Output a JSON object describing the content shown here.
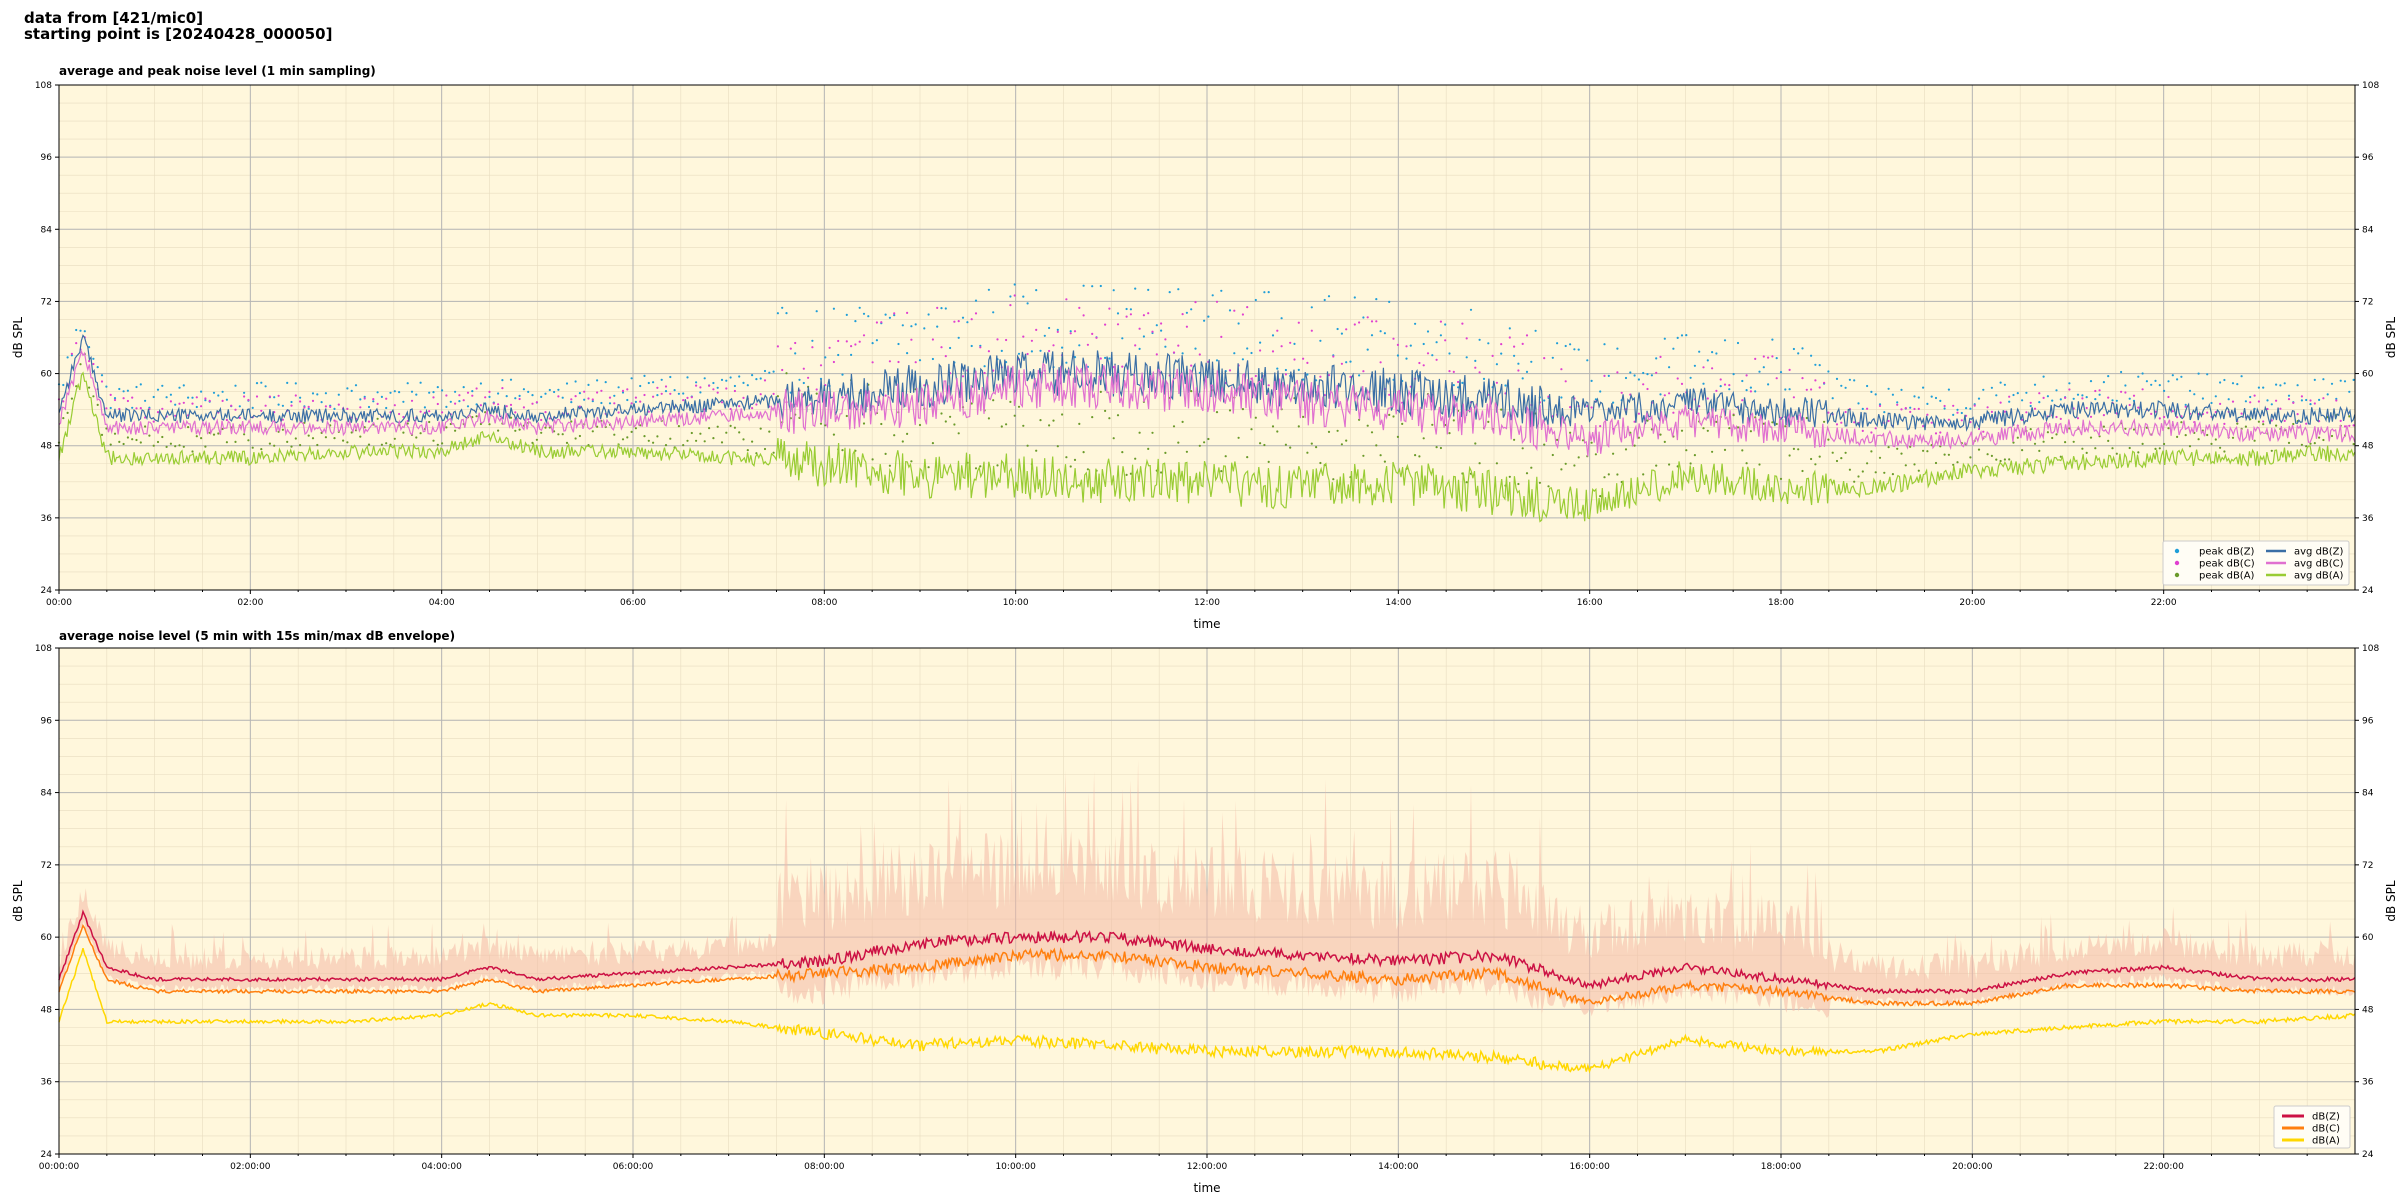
{
  "header": {
    "line1": "data from [421/mic0]",
    "line2": "starting point is [20240428_000050]"
  },
  "colors": {
    "plot_bg": "#fff7dc",
    "grid_major": "#b5b5b5",
    "grid_minor": "#e8dcc0",
    "envelope": "#f4b9a6"
  },
  "chart_data": [
    {
      "type": "line",
      "title": "average and peak noise level (1 min sampling)",
      "xlabel": "time",
      "ylabel": "dB SPL",
      "ylim": [
        24,
        108
      ],
      "xlim_hours": [
        0,
        24
      ],
      "yticks": [
        24,
        36,
        48,
        60,
        72,
        84,
        96,
        108
      ],
      "xtick_labels": [
        "00:00",
        "02:00",
        "04:00",
        "06:00",
        "08:00",
        "10:00",
        "12:00",
        "14:00",
        "16:00",
        "18:00",
        "20:00",
        "22:00"
      ],
      "legend_position": "bottom-right",
      "legend": [
        {
          "name": "peak dB(Z)",
          "kind": "marker",
          "color": "#1f9ed8"
        },
        {
          "name": "peak dB(C)",
          "kind": "marker",
          "color": "#e040d0"
        },
        {
          "name": "peak dB(A)",
          "kind": "marker",
          "color": "#6a9a2a"
        },
        {
          "name": "avg dB(Z)",
          "kind": "line",
          "color": "#3a6ea5"
        },
        {
          "name": "avg dB(C)",
          "kind": "line",
          "color": "#e070d0"
        },
        {
          "name": "avg dB(A)",
          "kind": "line",
          "color": "#99cc33"
        }
      ],
      "x_hours": [
        0,
        0.25,
        0.5,
        1,
        2,
        3,
        4,
        4.5,
        5,
        6,
        7,
        8,
        9,
        10,
        11,
        12,
        13,
        14,
        15,
        16,
        17,
        18,
        19,
        20,
        21,
        22,
        23,
        24
      ],
      "series": [
        {
          "name": "avg dB(Z)",
          "values": [
            54,
            66,
            53,
            53,
            53,
            53,
            53,
            54,
            53,
            54,
            55,
            56,
            58,
            60,
            60,
            59,
            58,
            57,
            56,
            53,
            55,
            54,
            52,
            52,
            54,
            54,
            53,
            53
          ]
        },
        {
          "name": "avg dB(C)",
          "values": [
            52,
            64,
            51,
            51,
            51,
            51,
            51,
            53,
            51,
            52,
            53,
            54,
            55,
            58,
            58,
            57,
            55,
            54,
            53,
            49,
            52,
            51,
            49,
            49,
            51,
            51,
            50,
            50
          ]
        },
        {
          "name": "avg dB(A)",
          "values": [
            46,
            60,
            46,
            46,
            46,
            47,
            47,
            50,
            47,
            47,
            46,
            45,
            43,
            43,
            42,
            42,
            41,
            42,
            40,
            38,
            43,
            41,
            41,
            44,
            45,
            46,
            46,
            47
          ]
        }
      ]
    },
    {
      "type": "line",
      "title": "average noise level (5 min with 15s min/max dB envelope)",
      "xlabel": "time",
      "ylabel": "dB SPL",
      "ylim": [
        24,
        108
      ],
      "xlim_hours": [
        0,
        24
      ],
      "yticks": [
        24,
        36,
        48,
        60,
        72,
        84,
        96,
        108
      ],
      "xtick_labels": [
        "00:00:00",
        "02:00:00",
        "04:00:00",
        "06:00:00",
        "08:00:00",
        "10:00:00",
        "12:00:00",
        "14:00:00",
        "16:00:00",
        "18:00:00",
        "20:00:00",
        "22:00:00"
      ],
      "legend_position": "bottom-right",
      "legend": [
        {
          "name": "dB(Z)",
          "kind": "line",
          "color": "#cc1144"
        },
        {
          "name": "dB(C)",
          "kind": "line",
          "color": "#ff7f0e"
        },
        {
          "name": "dB(A)",
          "kind": "line",
          "color": "#ffd700"
        }
      ],
      "x_hours": [
        0,
        0.25,
        0.5,
        1,
        2,
        3,
        4,
        4.5,
        5,
        6,
        7,
        8,
        9,
        10,
        11,
        12,
        13,
        14,
        15,
        16,
        17,
        18,
        19,
        20,
        21,
        22,
        23,
        24
      ],
      "series": [
        {
          "name": "dB(Z)",
          "values": [
            53,
            64,
            55,
            53,
            53,
            53,
            53,
            55,
            53,
            54,
            55,
            56,
            59,
            60,
            60,
            58,
            57,
            56,
            57,
            52,
            55,
            53,
            51,
            51,
            54,
            55,
            53,
            53
          ]
        },
        {
          "name": "dB(C)",
          "values": [
            51,
            62,
            53,
            51,
            51,
            51,
            51,
            53,
            51,
            52,
            53,
            54,
            55,
            57,
            57,
            55,
            54,
            53,
            54,
            49,
            52,
            51,
            49,
            49,
            52,
            52,
            51,
            51
          ]
        },
        {
          "name": "dB(A)",
          "values": [
            46,
            58,
            46,
            46,
            46,
            46,
            47,
            49,
            47,
            47,
            46,
            44,
            42,
            43,
            42,
            41,
            41,
            41,
            40,
            38,
            43,
            41,
            41,
            44,
            45,
            46,
            46,
            47
          ]
        }
      ]
    }
  ]
}
